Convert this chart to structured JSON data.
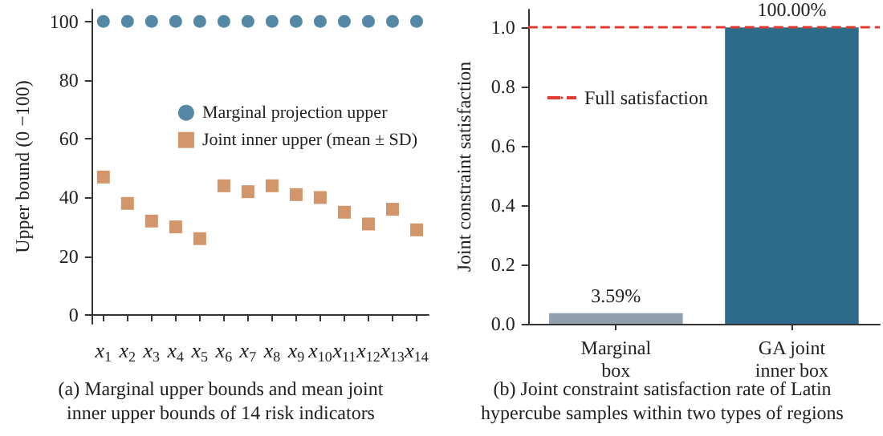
{
  "chart_data": [
    {
      "type": "scatter",
      "title": "(a) Marginal upper bounds and mean joint\ninner upper bounds of 14 risk indicators",
      "ylabel": "Upper bound (0 −100)",
      "categories": [
        "x$_{1}$",
        "x$_{2}$",
        "x$_{3}$",
        "x$_{4}$",
        "x$_{5}$",
        "x$_{6}$",
        "x$_{7}$",
        "x$_{8}$",
        "x$_{9}$",
        "x$_{10}$",
        "x$_{11}$",
        "x$_{12}$",
        "x$_{13}$",
        "x$_{14}$"
      ],
      "series": [
        {
          "name": "Marginal projection upper",
          "color": "#2b6a8e",
          "marker": "circle",
          "values": [
            100,
            100,
            100,
            100,
            100,
            100,
            100,
            100,
            100,
            100,
            100,
            100,
            100,
            100
          ]
        },
        {
          "name": "Joint inner upper (mean ± SD)",
          "color": "#c87a45",
          "marker": "square",
          "values": [
            47,
            38,
            32,
            30,
            26,
            44,
            42,
            44,
            41,
            40,
            35,
            31,
            36,
            29
          ]
        }
      ],
      "ylim": [
        -3,
        104
      ],
      "yticks": [
        0,
        20,
        40,
        60,
        80,
        100
      ],
      "grid": false,
      "legend": "right"
    },
    {
      "type": "bar",
      "title": "(b) Joint constraint satisfaction rate of Latin\nhypercube samples within two types of regions",
      "ylabel": "Joint constraint satisfaction",
      "categories": [
        "Marginal\nbox",
        "GA joint\ninner box"
      ],
      "values": [
        0.0359,
        1.0
      ],
      "colors": [
        "#929fad",
        "#2e6a8a"
      ],
      "value_labels": [
        "3.59%",
        "100.00%"
      ],
      "ylim": [
        0,
        1.06
      ],
      "yticks": [
        {
          "value": 0,
          "label": "0.0"
        },
        0.2,
        0.4,
        0.6,
        0.8,
        {
          "value": 1,
          "label": "1.0"
        }
      ],
      "grid": false,
      "ref_lines": [
        {
          "axis": "y",
          "value": 1.0,
          "label": "Full satisfaction",
          "color": "#e03c31",
          "line_style": "dashed"
        }
      ],
      "legend": "top left"
    }
  ]
}
